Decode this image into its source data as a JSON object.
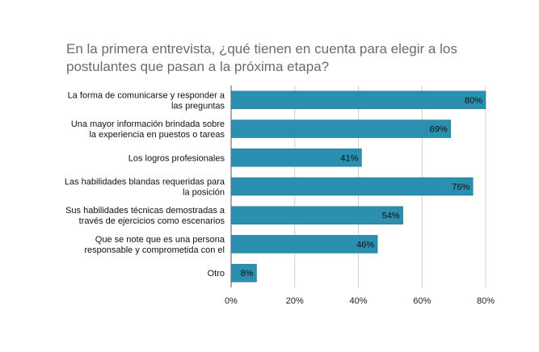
{
  "chart_data": {
    "type": "bar",
    "orientation": "horizontal",
    "title": "En la primera entrevista, ¿qué tienen en cuenta para elegir a los postulantes que pasan a la próxima etapa?",
    "categories": [
      [
        "La forma de comunicarse y responder a",
        "las preguntas"
      ],
      [
        "Una mayor información brindada sobre",
        "la experiencia en puestos o tareas"
      ],
      [
        "Los logros profesionales"
      ],
      [
        "Las habilidades blandas requeridas para",
        "la posición"
      ],
      [
        "Sus habilidades técnicas demostradas a",
        "través de ejercicios como escenarios"
      ],
      [
        "Que se note que es una persona",
        "responsable y comprometida con el"
      ],
      [
        "Otro"
      ]
    ],
    "values": [
      80,
      69,
      41,
      76,
      54,
      46,
      8
    ],
    "data_labels": [
      "80%",
      "69%",
      "41%",
      "76%",
      "54%",
      "46%",
      "8%"
    ],
    "x_ticks": [
      "0%",
      "20%",
      "40%",
      "60%",
      "80%"
    ],
    "xlim": [
      0,
      80
    ],
    "grid": true,
    "bar_color": "#2b8fb0"
  }
}
